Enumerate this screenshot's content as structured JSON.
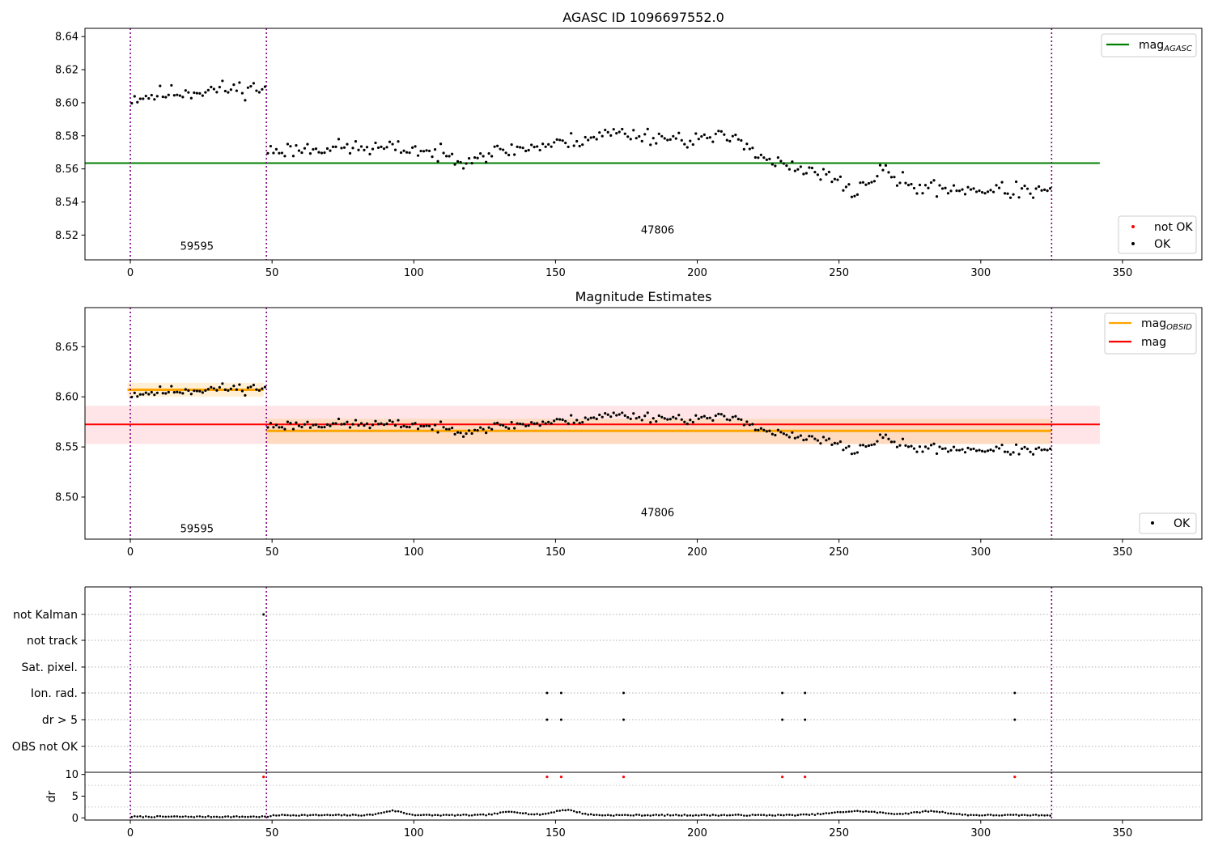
{
  "figure": {
    "title_top": "AGASC ID 1096697552.0",
    "title_mid": "Magnitude Estimates"
  },
  "chart_data": [
    {
      "type": "scatter",
      "title": "AGASC ID 1096697552.0",
      "xlim": [
        -16,
        378
      ],
      "ylim": [
        8.505,
        8.645
      ],
      "xticks": [
        0,
        50,
        100,
        150,
        200,
        250,
        300,
        350
      ],
      "xtick_labels": [
        "0",
        "50",
        "100",
        "150",
        "200",
        "250",
        "300",
        "350"
      ],
      "yticks": [
        8.52,
        8.54,
        8.56,
        8.58,
        8.6,
        8.62,
        8.64
      ],
      "ytick_labels": [
        "8.52",
        "8.54",
        "8.56",
        "8.58",
        "8.60",
        "8.62",
        "8.64"
      ],
      "segment_boundaries": [
        0,
        48,
        325
      ],
      "segment_labels": [
        {
          "x": 23.5,
          "y": 8.511,
          "text": "59595"
        },
        {
          "x": 186,
          "y": 8.521,
          "text": "47806"
        }
      ],
      "hlines": [
        {
          "y": 8.5635,
          "x": [
            -16,
            342
          ],
          "color": "#008000",
          "name": "mag_AGASC"
        }
      ],
      "legend_upper": {
        "position": "upper-right",
        "entries": [
          {
            "base": "mag",
            "sub": "AGASC",
            "color": "#008000"
          }
        ]
      },
      "legend_lower": {
        "position": "lower-right",
        "entries": [
          {
            "label": "not OK",
            "color": "#ff0000"
          },
          {
            "label": "OK",
            "color": "#000000"
          }
        ]
      },
      "series": [
        {
          "name": "OK",
          "color": "#000000",
          "segments": [
            {
              "x": [
                0,
                48
              ],
              "trend": [
                [
                  0,
                  8.603
                ],
                [
                  15,
                  8.606
                ],
                [
                  30,
                  8.608
                ],
                [
                  47,
                  8.609
                ]
              ],
              "noise": 0.0045,
              "seed": 11
            },
            {
              "x": [
                48,
                325
              ],
              "trend": [
                [
                  48,
                  8.571
                ],
                [
                  70,
                  8.573
                ],
                [
                  100,
                  8.572
                ],
                [
                  115,
                  8.566
                ],
                [
                  135,
                  8.572
                ],
                [
                  150,
                  8.575
                ],
                [
                  170,
                  8.582
                ],
                [
                  195,
                  8.578
                ],
                [
                  215,
                  8.579
                ],
                [
                  222,
                  8.567
                ],
                [
                  235,
                  8.559
                ],
                [
                  245,
                  8.556
                ],
                [
                  255,
                  8.546
                ],
                [
                  265,
                  8.559
                ],
                [
                  275,
                  8.549
                ],
                [
                  290,
                  8.548
                ],
                [
                  325,
                  8.546
                ]
              ],
              "noise": 0.0042,
              "seed": 23
            }
          ]
        }
      ]
    },
    {
      "type": "scatter",
      "title": "Magnitude Estimates",
      "xlim": [
        -16,
        378
      ],
      "ylim": [
        8.458,
        8.689
      ],
      "xticks": [
        0,
        50,
        100,
        150,
        200,
        250,
        300,
        350
      ],
      "xtick_labels": [
        "0",
        "50",
        "100",
        "150",
        "200",
        "250",
        "300",
        "350"
      ],
      "yticks": [
        8.5,
        8.55,
        8.6,
        8.65
      ],
      "ytick_labels": [
        "8.50",
        "8.55",
        "8.60",
        "8.65"
      ],
      "segment_boundaries": [
        0,
        48,
        325
      ],
      "segment_labels": [
        {
          "x": 23.5,
          "y": 8.465,
          "text": "59595"
        },
        {
          "x": 186,
          "y": 8.481,
          "text": "47806"
        }
      ],
      "bands": [
        {
          "x": [
            -16,
            342
          ],
          "y": [
            8.553,
            8.591
          ],
          "color": "#ffe1e3"
        },
        {
          "x": [
            -1,
            47
          ],
          "y": [
            8.6,
            8.614
          ],
          "color": "#ffedce"
        },
        {
          "x": [
            48,
            325
          ],
          "y": [
            8.553,
            8.578
          ],
          "color": "#fdd8b8"
        }
      ],
      "hlines": [
        {
          "y": 8.5725,
          "x": [
            -16,
            342
          ],
          "color": "#ff0000",
          "name": "mag"
        },
        {
          "y": 8.607,
          "x": [
            -1,
            47
          ],
          "color": "#ffa500",
          "name": "mag_OBSID"
        },
        {
          "y": 8.566,
          "x": [
            48,
            325
          ],
          "color": "#ffa500",
          "name": "mag_OBSID"
        }
      ],
      "legend_upper": {
        "position": "upper-right",
        "entries": [
          {
            "base": "mag",
            "sub": "OBSID",
            "color": "#ffa500"
          },
          {
            "label": "mag",
            "color": "#ff0000"
          }
        ]
      },
      "legend_lower": {
        "position": "lower-right",
        "entries": [
          {
            "label": "OK",
            "color": "#000000"
          }
        ]
      },
      "series": [
        {
          "name": "OK",
          "color": "#000000",
          "segments": [
            {
              "x": [
                0,
                48
              ],
              "trend": [
                [
                  0,
                  8.603
                ],
                [
                  15,
                  8.606
                ],
                [
                  30,
                  8.608
                ],
                [
                  47,
                  8.609
                ]
              ],
              "noise": 0.0045,
              "seed": 11
            },
            {
              "x": [
                48,
                325
              ],
              "trend": [
                [
                  48,
                  8.571
                ],
                [
                  70,
                  8.573
                ],
                [
                  100,
                  8.572
                ],
                [
                  115,
                  8.566
                ],
                [
                  135,
                  8.572
                ],
                [
                  150,
                  8.575
                ],
                [
                  170,
                  8.582
                ],
                [
                  195,
                  8.578
                ],
                [
                  215,
                  8.579
                ],
                [
                  222,
                  8.567
                ],
                [
                  235,
                  8.559
                ],
                [
                  245,
                  8.556
                ],
                [
                  255,
                  8.546
                ],
                [
                  265,
                  8.559
                ],
                [
                  275,
                  8.549
                ],
                [
                  290,
                  8.548
                ],
                [
                  325,
                  8.546
                ]
              ],
              "noise": 0.0042,
              "seed": 23
            }
          ]
        }
      ]
    },
    {
      "type": "scatter",
      "title": "",
      "xlim": [
        -16,
        378
      ],
      "categories": [
        "not Kalman",
        "not track",
        "Sat. pixel.",
        "Ion. rad.",
        "dr > 5",
        "OBS not OK"
      ],
      "flags": {
        "not Kalman": [
          47
        ],
        "not track": [],
        "Sat. pixel.": [],
        "Ion. rad.": [
          147,
          152,
          174,
          230,
          238,
          312
        ],
        "dr > 5": [
          147,
          152,
          174,
          230,
          238,
          312
        ],
        "OBS not OK": []
      },
      "segment_boundaries": [
        0,
        48,
        325
      ]
    },
    {
      "type": "scatter",
      "title": "",
      "ylabel": "dr",
      "xlim": [
        -16,
        378
      ],
      "ylim": [
        -0.5,
        10.5
      ],
      "xticks": [
        0,
        50,
        100,
        150,
        200,
        250,
        300,
        350
      ],
      "xtick_labels": [
        "0",
        "50",
        "100",
        "150",
        "200",
        "250",
        "300",
        "350"
      ],
      "yticks": [
        0,
        5,
        10
      ],
      "ytick_labels": [
        "0",
        "5",
        "10"
      ],
      "dr_red_x": [
        47,
        147,
        152,
        174,
        230,
        238,
        312
      ],
      "dr_red_y": 10,
      "dr_bumps": [
        [
          50,
          325,
          0.35
        ],
        [
          92,
          5,
          1.0
        ],
        [
          134,
          6,
          0.8
        ],
        [
          153,
          6,
          1.2
        ],
        [
          282,
          8,
          0.9
        ],
        [
          256,
          12,
          0.9
        ]
      ],
      "segment_boundaries": [
        0,
        48,
        325
      ]
    }
  ]
}
